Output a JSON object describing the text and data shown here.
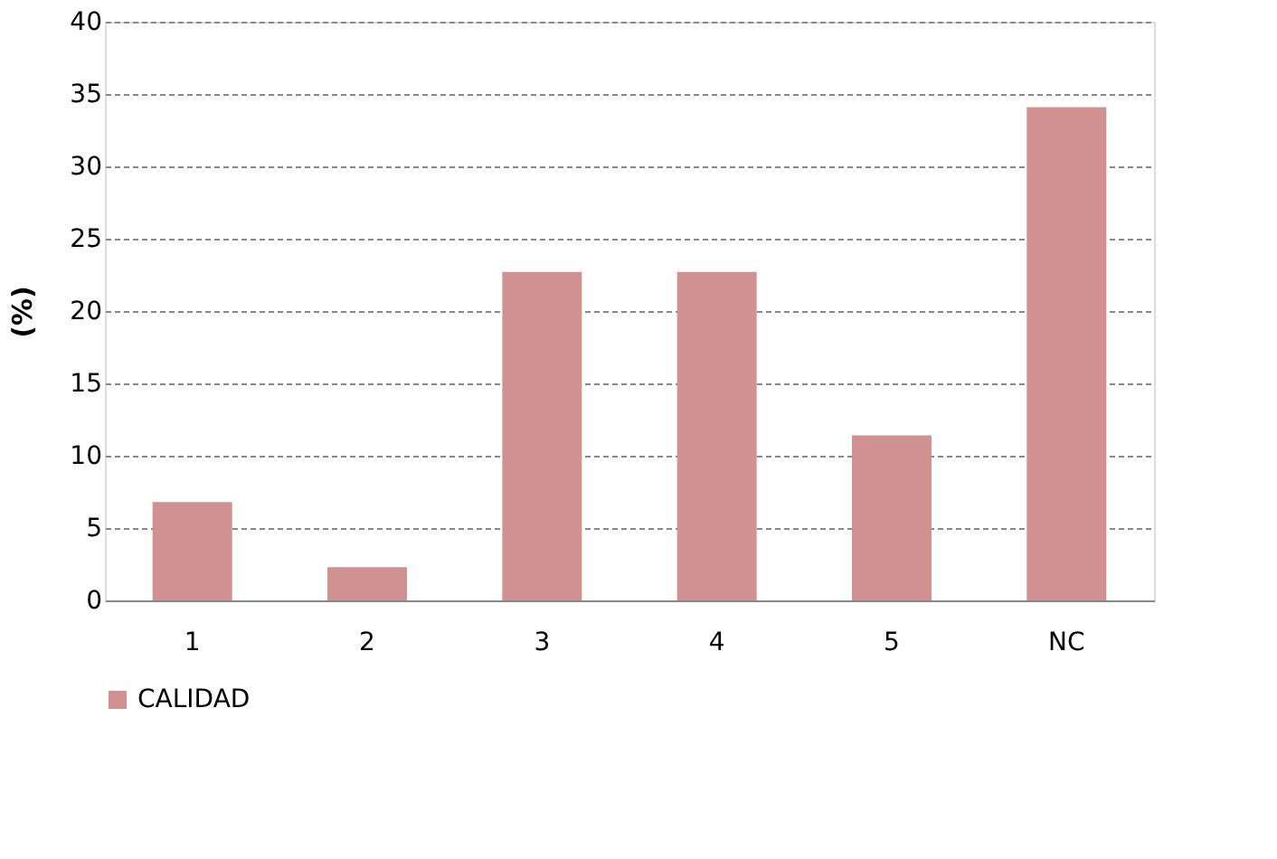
{
  "chart_data": {
    "type": "bar",
    "ylabel": "(%)",
    "categories": [
      "1",
      "2",
      "3",
      "4",
      "5",
      "NC"
    ],
    "series": [
      {
        "name": "CALIDAD",
        "color": "#d09190",
        "values": [
          6.8,
          2.3,
          22.7,
          22.7,
          11.4,
          34.1
        ]
      }
    ],
    "ylim": [
      0,
      40
    ],
    "yticks": [
      0,
      5,
      10,
      15,
      20,
      25,
      30,
      35,
      40
    ],
    "grid": "y",
    "legend": "bottom"
  }
}
